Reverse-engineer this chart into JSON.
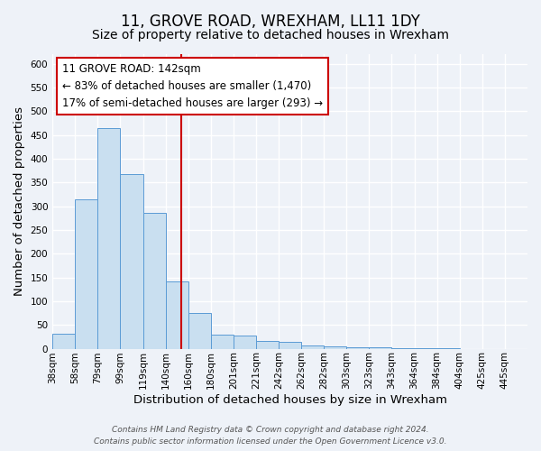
{
  "title": "11, GROVE ROAD, WREXHAM, LL11 1DY",
  "subtitle": "Size of property relative to detached houses in Wrexham",
  "bar_heights": [
    32,
    315,
    465,
    368,
    285,
    142,
    75,
    30,
    28,
    17,
    14,
    7,
    4,
    3,
    2,
    1,
    1,
    1
  ],
  "bin_left_edges": [
    28,
    48,
    68,
    88,
    108,
    128,
    148,
    168,
    188,
    208,
    228,
    248,
    268,
    288,
    308,
    328,
    348,
    368
  ],
  "bin_width": 20,
  "x_tick_positions": [
    28,
    48,
    68,
    88,
    108,
    128,
    148,
    168,
    188,
    208,
    228,
    248,
    268,
    288,
    308,
    328,
    348,
    368,
    388,
    408,
    428
  ],
  "x_tick_labels": [
    "38sqm",
    "58sqm",
    "79sqm",
    "99sqm",
    "119sqm",
    "140sqm",
    "160sqm",
    "180sqm",
    "201sqm",
    "221sqm",
    "242sqm",
    "262sqm",
    "282sqm",
    "303sqm",
    "323sqm",
    "343sqm",
    "364sqm",
    "384sqm",
    "404sqm",
    "425sqm",
    "445sqm"
  ],
  "xlabel": "Distribution of detached houses by size in Wrexham",
  "ylabel": "Number of detached properties",
  "xlim": [
    28,
    448
  ],
  "ylim": [
    0,
    620
  ],
  "yticks": [
    0,
    50,
    100,
    150,
    200,
    250,
    300,
    350,
    400,
    450,
    500,
    550,
    600
  ],
  "property_line_x": 142,
  "bar_color": "#c9dff0",
  "bar_edge_color": "#5b9bd5",
  "line_color": "#cc0000",
  "annotation_title": "11 GROVE ROAD: 142sqm",
  "annotation_line1": "← 83% of detached houses are smaller (1,470)",
  "annotation_line2": "17% of semi-detached houses are larger (293) →",
  "annotation_box_color": "#ffffff",
  "annotation_box_edge": "#cc0000",
  "footer1": "Contains HM Land Registry data © Crown copyright and database right 2024.",
  "footer2": "Contains public sector information licensed under the Open Government Licence v3.0.",
  "background_color": "#eef2f8",
  "grid_color": "#ffffff",
  "title_fontsize": 12,
  "subtitle_fontsize": 10,
  "axis_label_fontsize": 9.5,
  "tick_fontsize": 7.5,
  "annotation_fontsize": 8.5,
  "footer_fontsize": 6.5
}
